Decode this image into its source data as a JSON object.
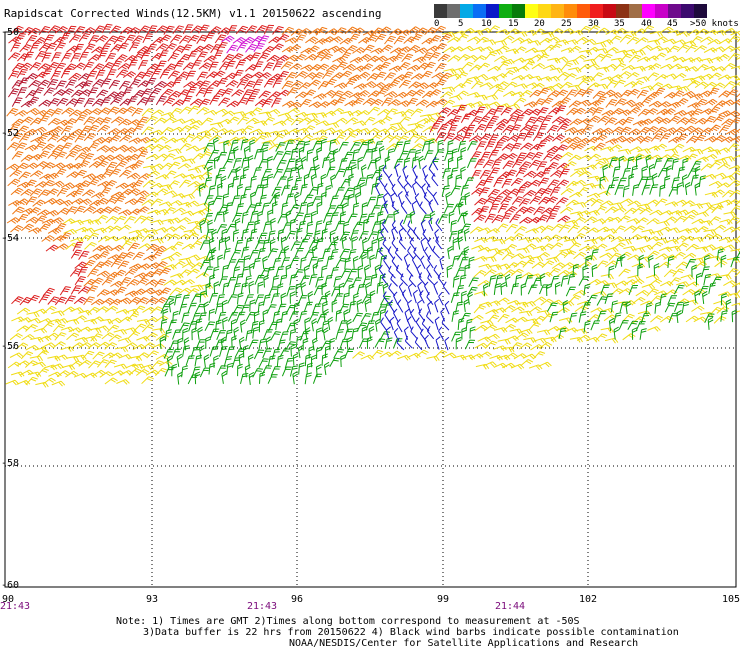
{
  "title": "Rapidscat Corrected Winds(12.5KM) v1.1 20150622 ascending",
  "legend": {
    "ticks": [
      "0",
      "5",
      "10",
      "15",
      "20",
      "25",
      "30",
      "35",
      "40",
      "45",
      ">50 knots"
    ],
    "colors": [
      "#3a3a3a",
      "#6e6e6e",
      "#04a9e6",
      "#0a6ef5",
      "#0a19c8",
      "#0fae12",
      "#087c0a",
      "#ffff14",
      "#ffd814",
      "#ffb414",
      "#ff8c0a",
      "#ff5a0a",
      "#f01e1e",
      "#c80a14",
      "#8c3214",
      "#a06e46",
      "#ff00ff",
      "#c800c8",
      "#6e0a8c",
      "#3c0a6e",
      "#1e0a3c"
    ]
  },
  "axes": {
    "lat_labels": [
      "-50",
      "-52",
      "-54",
      "-56",
      "-58",
      "-60"
    ],
    "lon_labels": [
      "90",
      "93",
      "96",
      "99",
      "102",
      "105"
    ],
    "lon_range": [
      90,
      105
    ],
    "lat_range": [
      -50,
      -60
    ]
  },
  "times": [
    "21:43",
    "21:43",
    "21:44"
  ],
  "notes": {
    "line1": "Note: 1) Times are GMT 2)Times along bottom correspond to measurement at -50S",
    "line2": "3)Data buffer is 22 hrs from 20150622 4) Black wind barbs indicate possible contamination",
    "line3": "NOAA/NESDIS/Center for Satellite Applications and Research"
  },
  "wind_colors": {
    "red": "#dc1e1e",
    "darkred": "#b4142d",
    "orange": "#f07814",
    "yellow": "#f0dc14",
    "green": "#0fa00f",
    "blue": "#1414c8",
    "magenta": "#d214d2"
  }
}
